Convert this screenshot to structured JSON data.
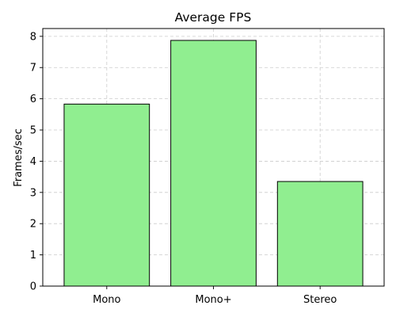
{
  "chart_data": {
    "type": "bar",
    "title": "Average FPS",
    "xlabel": "",
    "ylabel": "Frames/sec",
    "categories": [
      "Mono",
      "Mono+",
      "Stereo"
    ],
    "values": [
      5.83,
      7.87,
      3.35
    ],
    "ylim": [
      0,
      8.25
    ],
    "yticks": [
      0,
      1,
      2,
      3,
      4,
      5,
      6,
      7,
      8
    ],
    "grid": true,
    "legend": "none",
    "bar_color": "#90ee90",
    "bar_edge_color": "#000000",
    "grid_color": "#cccccc"
  }
}
